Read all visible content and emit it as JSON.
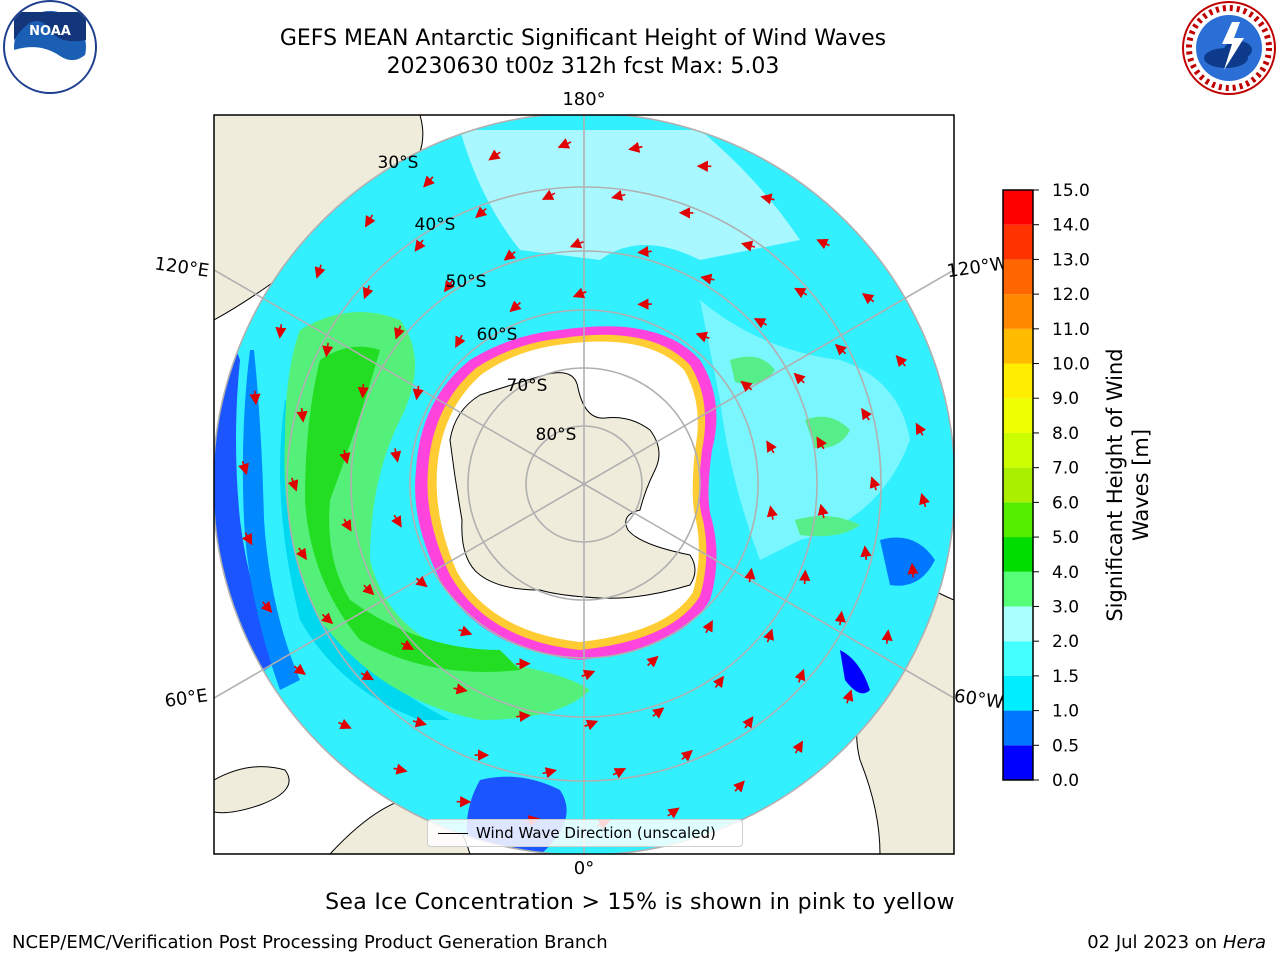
{
  "title": {
    "line1": "GEFS MEAN Antarctic Significant Height of Wind Waves",
    "line2": "20230630 t00z 312h fcst    Max: 5.03"
  },
  "logos": {
    "left": {
      "text": "NOAA",
      "icon": "noaa-logo-icon"
    },
    "right": {
      "icon": "nws-logo-icon"
    }
  },
  "map": {
    "projection": "south-polar-stereographic",
    "longitude_labels": [
      "180°",
      "120°E",
      "120°W",
      "60°E",
      "60°W",
      "0°"
    ],
    "latitude_labels": [
      "30°S",
      "40°S",
      "50°S",
      "60°S",
      "70°S",
      "80°S"
    ],
    "legend_label": "Wind Wave Direction (unscaled)",
    "colors": {
      "land": "#efecdc",
      "ice_shelf": "#ffffff",
      "sea_ice_edge": "#ff44dd",
      "arrow": "#e00000",
      "grid": "#b0b0b0"
    }
  },
  "colorbar": {
    "label_line1": "Significant Height of Wind",
    "label_line2": "Waves [m]",
    "ticks": [
      "0.0",
      "0.5",
      "1.0",
      "1.5",
      "2.0",
      "3.0",
      "4.0",
      "5.0",
      "6.0",
      "7.0",
      "8.0",
      "9.0",
      "10.0",
      "11.0",
      "12.0",
      "13.0",
      "14.0",
      "15.0"
    ],
    "bands": [
      "#0000ff",
      "#0077ff",
      "#00eeff",
      "#44ffff",
      "#aaffff",
      "#55ff77",
      "#00dd00",
      "#55ee00",
      "#aaee00",
      "#ccff00",
      "#eeff00",
      "#ffee00",
      "#ffbb00",
      "#ff8800",
      "#ff6600",
      "#ff3300",
      "#ff0000"
    ]
  },
  "note": "Sea Ice Concentration > 15% is shown in pink to yellow",
  "footer": {
    "left": "NCEP/EMC/Verification Post Processing Product Generation Branch",
    "right_date": "02 Jul 2023 on ",
    "right_machine": "Hera"
  }
}
